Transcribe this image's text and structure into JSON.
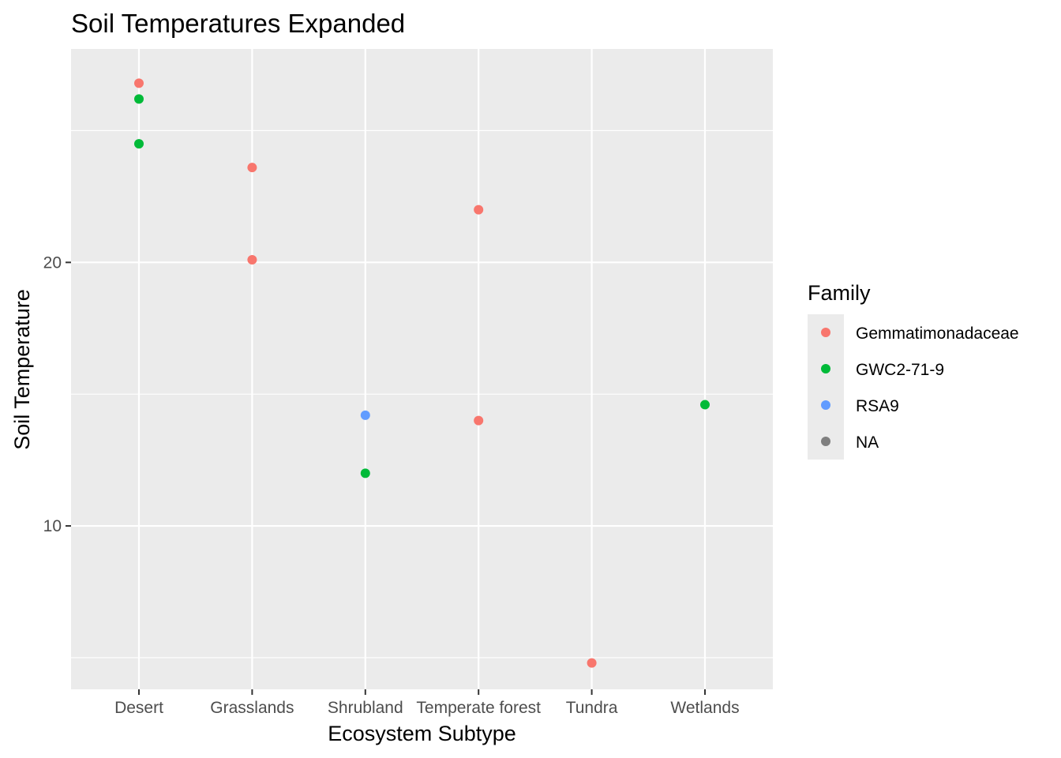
{
  "chart_data": {
    "type": "scatter",
    "title": "Soil Temperatures Expanded",
    "xlabel": "Ecosystem Subtype",
    "ylabel": "Soil Temperature",
    "categories": [
      "Desert",
      "Grasslands",
      "Shrubland",
      "Temperate forest",
      "Tundra",
      "Wetlands"
    ],
    "y_ticks": [
      10,
      20
    ],
    "ylim": [
      3.8,
      28.1
    ],
    "grid": true,
    "legend": {
      "title": "Family",
      "position": "right",
      "entries": [
        "Gemmatimonadaceae",
        "GWC2-71-9",
        "RSA9",
        "NA"
      ]
    },
    "colors": {
      "Gemmatimonadaceae": "#F8766D",
      "GWC2-71-9": "#00BA38",
      "RSA9": "#619CFF",
      "NA": "#7F7F7F",
      "panel_background": "#EBEBEB",
      "grid_line": "#FFFFFF"
    },
    "series": [
      {
        "name": "Gemmatimonadaceae",
        "points": [
          {
            "x": "Desert",
            "y": 26.8
          },
          {
            "x": "Grasslands",
            "y": 23.6
          },
          {
            "x": "Grasslands",
            "y": 20.1
          },
          {
            "x": "Temperate forest",
            "y": 22.0
          },
          {
            "x": "Temperate forest",
            "y": 14.0
          },
          {
            "x": "Tundra",
            "y": 4.8
          }
        ]
      },
      {
        "name": "GWC2-71-9",
        "points": [
          {
            "x": "Desert",
            "y": 26.2
          },
          {
            "x": "Desert",
            "y": 24.5
          },
          {
            "x": "Shrubland",
            "y": 12.0
          },
          {
            "x": "Wetlands",
            "y": 14.6
          }
        ]
      },
      {
        "name": "RSA9",
        "points": [
          {
            "x": "Shrubland",
            "y": 14.2
          }
        ]
      },
      {
        "name": "NA",
        "points": []
      }
    ]
  }
}
